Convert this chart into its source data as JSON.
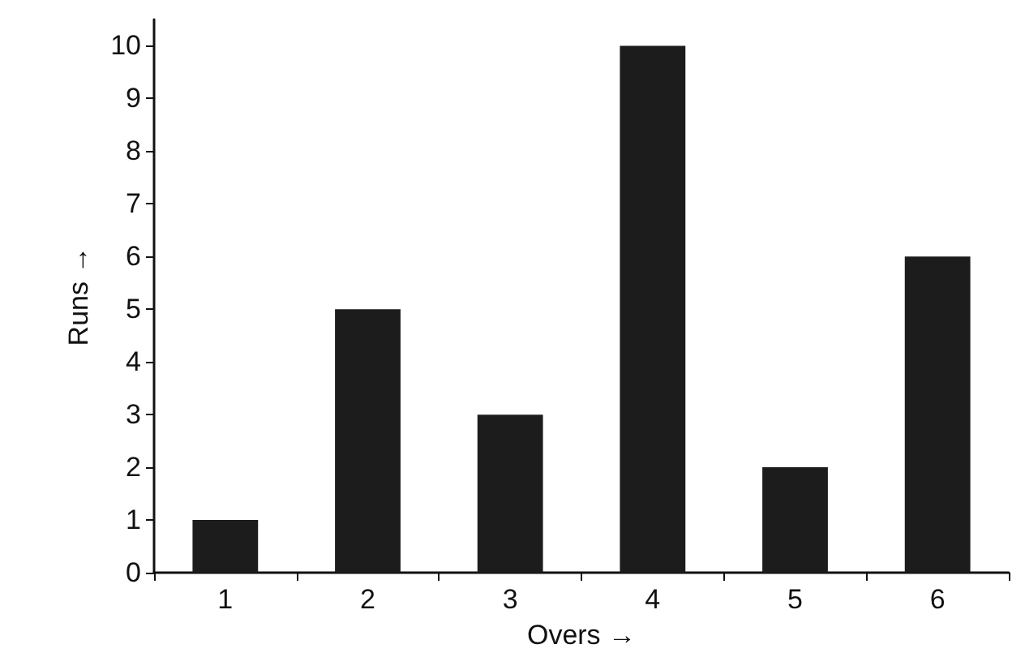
{
  "chart_data": {
    "type": "bar",
    "xlabel": "Overs →",
    "ylabel": "Runs →",
    "categories": [
      "1",
      "2",
      "3",
      "4",
      "5",
      "6"
    ],
    "values": [
      1,
      5,
      3,
      10,
      2,
      6
    ],
    "color": "#1c1c1c",
    "ylim": [
      0,
      10.5
    ],
    "yticks": [
      0,
      1,
      2,
      3,
      4,
      5,
      6,
      7,
      8,
      9,
      10
    ]
  }
}
